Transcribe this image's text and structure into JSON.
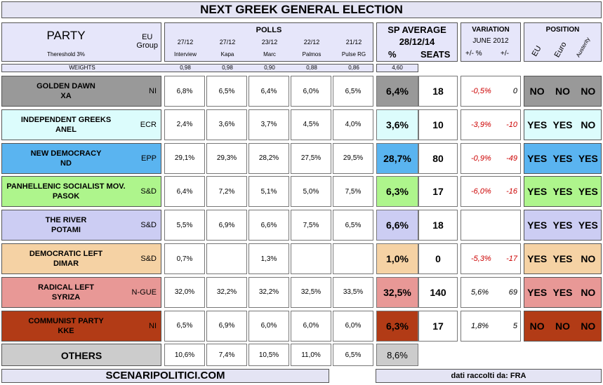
{
  "title": "NEXT GREEK GENERAL ELECTION",
  "header": {
    "party": "PARTY",
    "eu_group": "EU Group",
    "threshold": "Thereshold 3%",
    "polls": "POLLS",
    "poll_dates": [
      "27/12",
      "27/12",
      "23/12",
      "22/12",
      "21/12"
    ],
    "pollsters": [
      "Interview",
      "Kapa",
      "Marc",
      "Palmos",
      "Pulse RG"
    ],
    "sp_average": "SP AVERAGE",
    "sp_date": "28/12/14",
    "pct": "%",
    "seats": "SEATS",
    "variation": "VARIATION",
    "var_ref": "JUNE 2012",
    "var_pct": "+/- %",
    "var_seats": "+/-",
    "position": "POSITION",
    "pos_cols": [
      "EU",
      "Euro",
      "Austerity"
    ]
  },
  "weights": {
    "label": "WEIGHTS",
    "values": [
      "0,98",
      "0,98",
      "0,90",
      "0,88",
      "0,86"
    ],
    "total": "4,60"
  },
  "colors": {
    "golden_dawn": "#999999",
    "anel": "#dcfcfc",
    "nd": "#5ab4f0",
    "pasok": "#aef58c",
    "potami": "#cccdf3",
    "dimar": "#f5d2a4",
    "syriza": "#e89896",
    "kke": "#b23b16",
    "others": "#cccccc"
  },
  "parties": [
    {
      "name": "GOLDEN DAWN",
      "abbr": "XA",
      "group": "NI",
      "polls": [
        "6,8%",
        "6,5%",
        "6,4%",
        "6,0%",
        "6,5%"
      ],
      "avg": "6,4%",
      "seats": "18",
      "var_pct": "-0,5%",
      "var_seats": "0",
      "eu": "NO",
      "euro": "NO",
      "austerity": "NO"
    },
    {
      "name": "INDEPENDENT GREEKS",
      "abbr": "ANEL",
      "group": "ECR",
      "polls": [
        "2,4%",
        "3,6%",
        "3,7%",
        "4,5%",
        "4,0%"
      ],
      "avg": "3,6%",
      "seats": "10",
      "var_pct": "-3,9%",
      "var_seats": "-10",
      "eu": "YES",
      "euro": "YES",
      "austerity": "NO"
    },
    {
      "name": "NEW DEMOCRACY",
      "abbr": "ND",
      "group": "EPP",
      "polls": [
        "29,1%",
        "29,3%",
        "28,2%",
        "27,5%",
        "29,5%"
      ],
      "avg": "28,7%",
      "seats": "80",
      "var_pct": "-0,9%",
      "var_seats": "-49",
      "eu": "YES",
      "euro": "YES",
      "austerity": "YES"
    },
    {
      "name": "PANHELLENIC SOCIALIST MOV.",
      "abbr": "PASOK",
      "group": "S&D",
      "polls": [
        "6,4%",
        "7,2%",
        "5,1%",
        "5,0%",
        "7,5%"
      ],
      "avg": "6,3%",
      "seats": "17",
      "var_pct": "-6,0%",
      "var_seats": "-16",
      "eu": "YES",
      "euro": "YES",
      "austerity": "YES"
    },
    {
      "name": "THE RIVER",
      "abbr": "POTAMI",
      "group": "S&D",
      "polls": [
        "5,5%",
        "6,9%",
        "6,6%",
        "7,5%",
        "6,5%"
      ],
      "avg": "6,6%",
      "seats": "18",
      "var_pct": "",
      "var_seats": "",
      "eu": "YES",
      "euro": "YES",
      "austerity": "YES"
    },
    {
      "name": "DEMOCRATIC LEFT",
      "abbr": "DIMAR",
      "group": "S&D",
      "polls": [
        "0,7%",
        "",
        "1,3%",
        "",
        ""
      ],
      "avg": "1,0%",
      "seats": "0",
      "var_pct": "-5,3%",
      "var_seats": "-17",
      "eu": "YES",
      "euro": "YES",
      "austerity": "NO"
    },
    {
      "name": "RADICAL LEFT",
      "abbr": "SYRIZA",
      "group": "N-GUE",
      "polls": [
        "32,0%",
        "32,2%",
        "32,2%",
        "32,5%",
        "33,5%"
      ],
      "avg": "32,5%",
      "seats": "140",
      "var_pct": "5,6%",
      "var_seats": "69",
      "eu": "YES",
      "euro": "YES",
      "austerity": "NO"
    },
    {
      "name": "COMMUNIST PARTY",
      "abbr": "KKE",
      "group": "NI",
      "polls": [
        "6,5%",
        "6,9%",
        "6,0%",
        "6,0%",
        "6,0%"
      ],
      "avg": "6,3%",
      "seats": "17",
      "var_pct": "1,8%",
      "var_seats": "5",
      "eu": "NO",
      "euro": "NO",
      "austerity": "NO"
    }
  ],
  "others": {
    "name": "OTHERS",
    "polls": [
      "10,6%",
      "7,4%",
      "10,5%",
      "11,0%",
      "6,5%"
    ],
    "avg": "8,6%"
  },
  "footer": {
    "site": "SCENARIPOLITICI.COM",
    "source": "dati raccolti da: FRA"
  }
}
